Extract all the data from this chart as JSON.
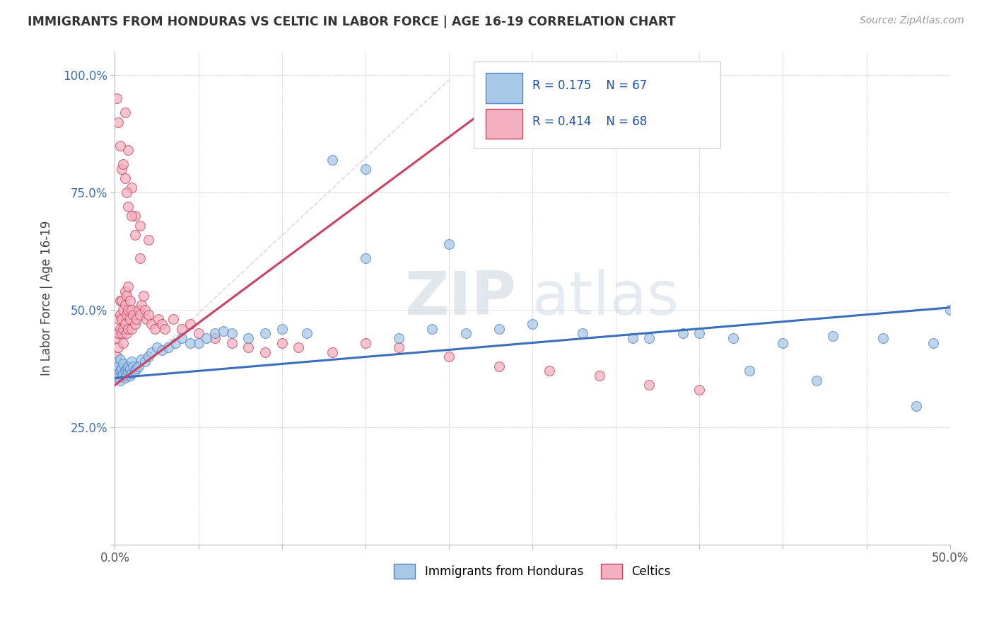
{
  "title": "IMMIGRANTS FROM HONDURAS VS CELTIC IN LABOR FORCE | AGE 16-19 CORRELATION CHART",
  "source": "Source: ZipAtlas.com",
  "ylabel": "In Labor Force | Age 16-19",
  "xlim": [
    0.0,
    0.5
  ],
  "ylim": [
    0.0,
    1.05
  ],
  "legend_R_blue": "R = 0.175",
  "legend_N_blue": "N = 67",
  "legend_R_pink": "R = 0.414",
  "legend_N_pink": "N = 68",
  "blue_color": "#a8c8e8",
  "pink_color": "#f4b0c0",
  "blue_edge_color": "#4a86c8",
  "pink_edge_color": "#d04060",
  "blue_line_color": "#3a6fbe",
  "pink_line_color": "#d04060",
  "watermark_zip": "ZIP",
  "watermark_atlas": "atlas",
  "blue_scatter_x": [
    0.001,
    0.001,
    0.002,
    0.002,
    0.003,
    0.003,
    0.003,
    0.004,
    0.004,
    0.005,
    0.005,
    0.006,
    0.006,
    0.007,
    0.007,
    0.008,
    0.008,
    0.009,
    0.009,
    0.01,
    0.01,
    0.011,
    0.012,
    0.013,
    0.014,
    0.016,
    0.018,
    0.02,
    0.022,
    0.025,
    0.028,
    0.032,
    0.036,
    0.04,
    0.045,
    0.05,
    0.055,
    0.06,
    0.065,
    0.07,
    0.08,
    0.09,
    0.1,
    0.115,
    0.13,
    0.15,
    0.17,
    0.19,
    0.21,
    0.23,
    0.25,
    0.28,
    0.31,
    0.34,
    0.37,
    0.4,
    0.43,
    0.46,
    0.49,
    0.5,
    0.15,
    0.2,
    0.32,
    0.35,
    0.38,
    0.42,
    0.48
  ],
  "blue_scatter_y": [
    0.365,
    0.39,
    0.355,
    0.38,
    0.35,
    0.37,
    0.395,
    0.36,
    0.375,
    0.365,
    0.385,
    0.37,
    0.355,
    0.375,
    0.36,
    0.37,
    0.38,
    0.36,
    0.375,
    0.365,
    0.39,
    0.38,
    0.37,
    0.375,
    0.38,
    0.395,
    0.39,
    0.4,
    0.41,
    0.42,
    0.415,
    0.42,
    0.43,
    0.44,
    0.43,
    0.43,
    0.44,
    0.45,
    0.455,
    0.45,
    0.44,
    0.45,
    0.46,
    0.45,
    0.82,
    0.8,
    0.44,
    0.46,
    0.45,
    0.46,
    0.47,
    0.45,
    0.44,
    0.45,
    0.44,
    0.43,
    0.445,
    0.44,
    0.43,
    0.5,
    0.61,
    0.64,
    0.44,
    0.45,
    0.37,
    0.35,
    0.295
  ],
  "pink_scatter_x": [
    0.001,
    0.001,
    0.001,
    0.002,
    0.002,
    0.002,
    0.003,
    0.003,
    0.003,
    0.004,
    0.004,
    0.004,
    0.005,
    0.005,
    0.005,
    0.006,
    0.006,
    0.006,
    0.007,
    0.007,
    0.007,
    0.008,
    0.008,
    0.008,
    0.009,
    0.009,
    0.01,
    0.01,
    0.011,
    0.012,
    0.013,
    0.014,
    0.015,
    0.016,
    0.017,
    0.018,
    0.019,
    0.02,
    0.022,
    0.024,
    0.026,
    0.028,
    0.03,
    0.035,
    0.04,
    0.045,
    0.05,
    0.06,
    0.07,
    0.08,
    0.09,
    0.1,
    0.11,
    0.13,
    0.15,
    0.17,
    0.2,
    0.23,
    0.26,
    0.29,
    0.32,
    0.35,
    0.02,
    0.015,
    0.012,
    0.01,
    0.008,
    0.006
  ],
  "pink_scatter_y": [
    0.37,
    0.4,
    0.44,
    0.42,
    0.45,
    0.48,
    0.46,
    0.49,
    0.52,
    0.45,
    0.48,
    0.52,
    0.43,
    0.46,
    0.5,
    0.47,
    0.51,
    0.54,
    0.45,
    0.49,
    0.53,
    0.46,
    0.5,
    0.55,
    0.48,
    0.52,
    0.46,
    0.5,
    0.49,
    0.47,
    0.48,
    0.5,
    0.49,
    0.51,
    0.53,
    0.5,
    0.48,
    0.49,
    0.47,
    0.46,
    0.48,
    0.47,
    0.46,
    0.48,
    0.46,
    0.47,
    0.45,
    0.44,
    0.43,
    0.42,
    0.41,
    0.43,
    0.42,
    0.41,
    0.43,
    0.42,
    0.4,
    0.38,
    0.37,
    0.36,
    0.34,
    0.33,
    0.65,
    0.68,
    0.7,
    0.76,
    0.84,
    0.92
  ],
  "pink_extra_high_x": [
    0.001,
    0.002,
    0.003,
    0.004,
    0.005,
    0.006,
    0.007,
    0.008,
    0.01,
    0.012,
    0.015
  ],
  "pink_extra_high_y": [
    0.95,
    0.9,
    0.85,
    0.8,
    0.81,
    0.78,
    0.75,
    0.72,
    0.7,
    0.66,
    0.61
  ]
}
